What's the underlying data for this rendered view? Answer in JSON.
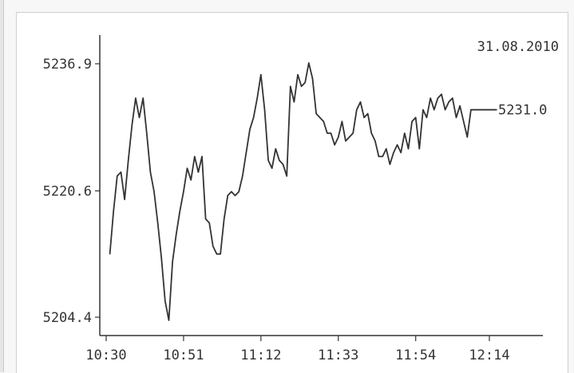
{
  "chart_data": {
    "type": "line",
    "title": "",
    "date_label": "31.08.2010",
    "last_value_label": "5231.0",
    "xlabel": "",
    "ylabel": "",
    "x_ticks": [
      "10:30",
      "10:51",
      "11:12",
      "11:33",
      "11:54",
      "12:14"
    ],
    "y_ticks": [
      "5236.9",
      "5220.6",
      "5204.4"
    ],
    "ylim": [
      5203.0,
      5240.0
    ],
    "xlim": [
      "10:30",
      "12:14"
    ],
    "grid": false,
    "series": [
      {
        "color": "#333333",
        "x": [
          "10:31",
          "10:32",
          "10:33",
          "10:34",
          "10:35",
          "10:36",
          "10:37",
          "10:38",
          "10:39",
          "10:40",
          "10:41",
          "10:42",
          "10:43",
          "10:44",
          "10:45",
          "10:46",
          "10:47",
          "10:48",
          "10:49",
          "10:50",
          "10:51",
          "10:52",
          "10:53",
          "10:54",
          "10:55",
          "10:56",
          "10:57",
          "10:58",
          "10:59",
          "11:00",
          "11:01",
          "11:02",
          "11:03",
          "11:04",
          "11:05",
          "11:06",
          "11:07",
          "11:08",
          "11:09",
          "11:10",
          "11:11",
          "11:12",
          "11:13",
          "11:14",
          "11:15",
          "11:16",
          "11:17",
          "11:18",
          "11:19",
          "11:20",
          "11:21",
          "11:22",
          "11:23",
          "11:24",
          "11:25",
          "11:26",
          "11:27",
          "11:28",
          "11:29",
          "11:30",
          "11:31",
          "11:32",
          "11:33",
          "11:34",
          "11:35",
          "11:36",
          "11:37",
          "11:38",
          "11:39",
          "11:40",
          "11:41",
          "11:42",
          "11:43",
          "11:44",
          "11:45",
          "11:46",
          "11:47",
          "11:48",
          "11:49",
          "11:50",
          "11:51",
          "11:52",
          "11:53",
          "11:54",
          "11:55",
          "11:56",
          "11:57",
          "11:58",
          "11:59",
          "12:00",
          "12:01",
          "12:02",
          "12:03",
          "12:04",
          "12:05",
          "12:06",
          "12:07",
          "12:08",
          "12:09",
          "12:10",
          "12:11",
          "12:12",
          "12:13",
          "12:14",
          "12:15",
          "12:16"
        ],
        "values": [
          5212.5,
          5218.0,
          5222.5,
          5223.0,
          5219.5,
          5224.5,
          5229.0,
          5232.5,
          5230.0,
          5232.5,
          5228.0,
          5223.0,
          5220.5,
          5216.5,
          5212.0,
          5206.5,
          5204.0,
          5211.5,
          5215.0,
          5218.0,
          5220.5,
          5223.5,
          5222.0,
          5225.0,
          5223.0,
          5225.0,
          5217.0,
          5216.5,
          5213.5,
          5212.5,
          5212.5,
          5217.0,
          5220.0,
          5220.5,
          5220.0,
          5220.5,
          5222.5,
          5225.5,
          5228.5,
          5230.0,
          5232.5,
          5235.5,
          5231.0,
          5224.5,
          5223.5,
          5226.0,
          5224.5,
          5224.0,
          5222.5,
          5234.0,
          5232.0,
          5235.5,
          5234.0,
          5234.5,
          5237.0,
          5235.0,
          5230.5,
          5230.0,
          5229.5,
          5228.0,
          5228.0,
          5226.5,
          5227.5,
          5229.5,
          5227.0,
          5227.5,
          5228.0,
          5231.0,
          5232.0,
          5230.0,
          5230.5,
          5228.0,
          5227.0,
          5225.0,
          5225.0,
          5226.0,
          5224.0,
          5225.5,
          5226.5,
          5225.5,
          5228.0,
          5226.0,
          5229.5,
          5230.0,
          5226.0,
          5231.0,
          5230.0,
          5232.5,
          5231.0,
          5232.5,
          5233.0,
          5231.0,
          5232.0,
          5232.5,
          5230.0,
          5231.5,
          5229.5,
          5227.5,
          5231.0,
          5231.0,
          5231.0,
          5231.0,
          5231.0,
          5231.0,
          5231.0,
          5231.0
        ]
      }
    ]
  }
}
